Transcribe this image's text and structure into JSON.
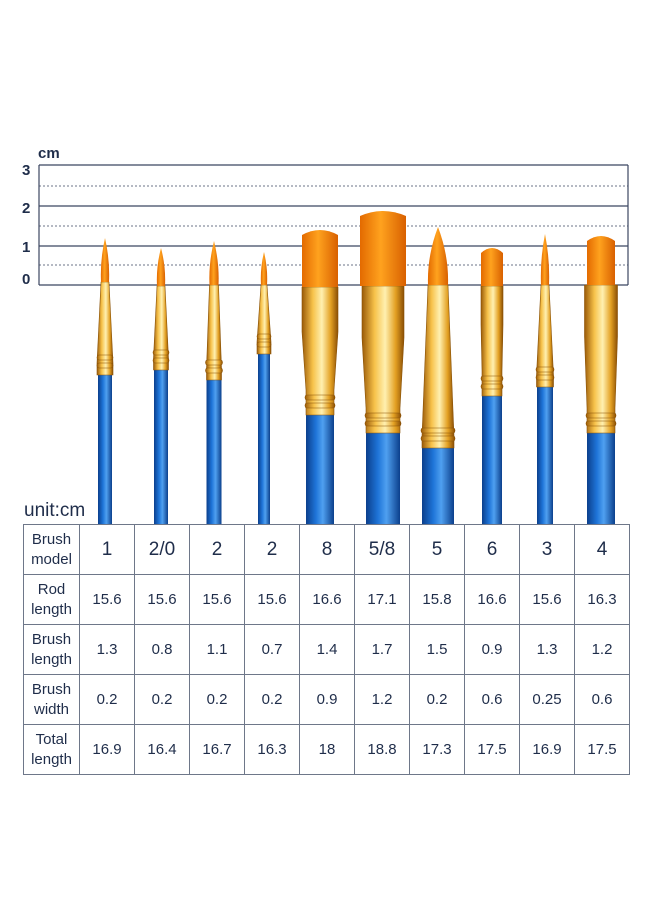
{
  "ruler": {
    "unit": "cm",
    "marks": [
      "3",
      "2",
      "1",
      "0"
    ]
  },
  "table": {
    "unit_label": "unit:cm",
    "rows": [
      {
        "header": "Brush model",
        "values": [
          "1",
          "2/0",
          "2",
          "2",
          "8",
          "5/8",
          "5",
          "6",
          "3",
          "4"
        ]
      },
      {
        "header": "Rod length",
        "values": [
          "15.6",
          "15.6",
          "15.6",
          "15.6",
          "16.6",
          "17.1",
          "15.8",
          "16.6",
          "15.6",
          "16.3"
        ]
      },
      {
        "header": "Brush length",
        "values": [
          "1.3",
          "0.8",
          "1.1",
          "0.7",
          "1.4",
          "1.7",
          "1.5",
          "0.9",
          "1.3",
          "1.2"
        ]
      },
      {
        "header": "Brush width",
        "values": [
          "0.2",
          "0.2",
          "0.2",
          "0.2",
          "0.9",
          "1.2",
          "0.2",
          "0.6",
          "0.25",
          "0.6"
        ]
      },
      {
        "header": "Total length",
        "values": [
          "16.9",
          "16.4",
          "16.7",
          "16.3",
          "18",
          "18.8",
          "17.3",
          "17.5",
          "16.9",
          "17.5"
        ]
      }
    ]
  },
  "brushes": [
    {
      "model": "1",
      "shape": "round"
    },
    {
      "model": "2/0",
      "shape": "round"
    },
    {
      "model": "2",
      "shape": "round"
    },
    {
      "model": "2",
      "shape": "round"
    },
    {
      "model": "8",
      "shape": "flat"
    },
    {
      "model": "5/8",
      "shape": "flat"
    },
    {
      "model": "5",
      "shape": "round"
    },
    {
      "model": "6",
      "shape": "flat"
    },
    {
      "model": "3",
      "shape": "round"
    },
    {
      "model": "4",
      "shape": "flat"
    }
  ],
  "colors": {
    "ink": "#1f2d4a",
    "handle": "#1565c8",
    "ferrule": "#e0a020",
    "bristle": "#ff8c00"
  }
}
